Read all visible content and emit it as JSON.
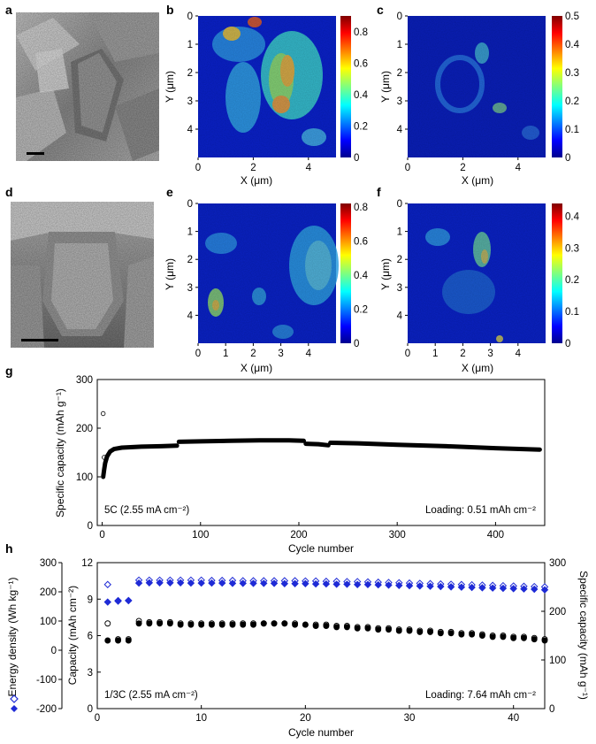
{
  "panels": {
    "a": {
      "letter": "a"
    },
    "b": {
      "letter": "b",
      "xlabel": "X (μm)",
      "ylabel": "Y (μm)",
      "x_ticks": [
        "0",
        "2",
        "4"
      ],
      "y_ticks": [
        "0",
        "1",
        "2",
        "3",
        "4"
      ],
      "colorbar_ticks": [
        "0.8",
        "0.6",
        "0.4",
        "0.2",
        "0"
      ]
    },
    "c": {
      "letter": "c",
      "xlabel": "X (μm)",
      "ylabel": "Y (μm)",
      "x_ticks": [
        "0",
        "2",
        "4"
      ],
      "y_ticks": [
        "0",
        "1",
        "2",
        "3",
        "4"
      ],
      "colorbar_ticks": [
        "0.5",
        "0.4",
        "0.3",
        "0.2",
        "0.1",
        "0"
      ]
    },
    "d": {
      "letter": "d"
    },
    "e": {
      "letter": "e",
      "xlabel": "X (μm)",
      "ylabel": "Y (μm)",
      "x_ticks": [
        "0",
        "1",
        "2",
        "3",
        "4"
      ],
      "y_ticks": [
        "0",
        "1",
        "2",
        "3",
        "4"
      ],
      "colorbar_ticks": [
        "0.8",
        "0.6",
        "0.4",
        "0.2",
        "0"
      ]
    },
    "f": {
      "letter": "f",
      "xlabel": "X (μm)",
      "ylabel": "Y (μm)",
      "x_ticks": [
        "0",
        "1",
        "2",
        "3",
        "4"
      ],
      "y_ticks": [
        "0",
        "1",
        "2",
        "3",
        "4"
      ],
      "colorbar_ticks": [
        "0.4",
        "0.3",
        "0.2",
        "0.1",
        "0"
      ]
    },
    "g": {
      "letter": "g"
    },
    "h": {
      "letter": "h"
    }
  },
  "chart_data": [
    {
      "id": "g",
      "type": "scatter",
      "xlabel": "Cycle number",
      "ylabel": "Specific capacity (mAh g⁻¹)",
      "xlim": [
        -5,
        450
      ],
      "ylim": [
        0,
        300
      ],
      "x_ticks": [
        0,
        100,
        200,
        300,
        400
      ],
      "y_ticks": [
        0,
        100,
        200,
        300
      ],
      "annotation_left": "5C (2.55 mA cm⁻²)",
      "annotation_right": "Loading: 0.51 mAh cm⁻²",
      "series": [
        {
          "marker": "open",
          "points": [
            [
              1,
              230
            ],
            [
              2,
              140
            ]
          ]
        },
        {
          "marker": "filled",
          "segments": [
            [
              [
                1,
                100
              ],
              [
                2,
                115
              ],
              [
                3,
                128
              ],
              [
                5,
                142
              ],
              [
                8,
                152
              ],
              [
                12,
                157
              ],
              [
                20,
                160
              ],
              [
                40,
                162
              ],
              [
                60,
                163
              ],
              [
                76,
                164
              ]
            ],
            [
              [
                78,
                172
              ],
              [
                100,
                173
              ],
              [
                130,
                174
              ],
              [
                160,
                175
              ],
              [
                190,
                175
              ],
              [
                205,
                174
              ]
            ],
            [
              [
                207,
                168
              ],
              [
                220,
                167
              ],
              [
                230,
                165
              ]
            ],
            [
              [
                232,
                170
              ],
              [
                260,
                169
              ],
              [
                300,
                166
              ],
              [
                350,
                163
              ],
              [
                400,
                159
              ],
              [
                445,
                156
              ]
            ]
          ]
        }
      ]
    },
    {
      "id": "h",
      "type": "scatter",
      "xlabel": "Cycle number",
      "ylabel_left": "Capacity (mAh cm⁻²)",
      "ylabel_far_left": "Energy density (Wh kg⁻¹)",
      "ylabel_right": "Specific capacity (mAh g⁻¹)",
      "xlim": [
        0,
        43
      ],
      "ylim_left": [
        0,
        12
      ],
      "ylim_energy": [
        -200,
        300
      ],
      "ylim_right": [
        0,
        300
      ],
      "x_ticks": [
        0,
        10,
        20,
        30,
        40
      ],
      "y_ticks_left": [
        0,
        3,
        6,
        9,
        12
      ],
      "y_ticks_energy": [
        -200,
        -100,
        0,
        100,
        200,
        300
      ],
      "y_ticks_right": [
        0,
        100,
        200,
        300
      ],
      "annotation_left": "1/3C (2.55 mA cm⁻²)",
      "annotation_right": "Loading: 7.64 mAh cm⁻²",
      "colors": {
        "energy": "#1f2bd6",
        "capacity": "#000000"
      },
      "series": [
        {
          "name": "energy-charge",
          "marker": "open-diamond",
          "axis": "energy",
          "x": [
            1,
            2,
            3,
            4,
            5,
            6,
            7,
            8,
            9,
            10,
            11,
            12,
            13,
            14,
            15,
            16,
            17,
            18,
            19,
            20,
            21,
            22,
            23,
            24,
            25,
            26,
            27,
            28,
            29,
            30,
            31,
            32,
            33,
            34,
            35,
            36,
            37,
            38,
            39,
            40,
            41,
            42,
            43
          ],
          "y": [
            225,
            170,
            170,
            240,
            240,
            240,
            240,
            240,
            240,
            240,
            239,
            239,
            239,
            238,
            238,
            238,
            238,
            238,
            238,
            237,
            237,
            236,
            236,
            235,
            235,
            234,
            233,
            232,
            231,
            230,
            229,
            228,
            227,
            226,
            225,
            224,
            223,
            222,
            221,
            220,
            219,
            218,
            217
          ]
        },
        {
          "name": "energy-discharge",
          "marker": "filled-diamond",
          "axis": "energy",
          "x": [
            1,
            2,
            3,
            4,
            5,
            6,
            7,
            8,
            9,
            10,
            11,
            12,
            13,
            14,
            15,
            16,
            17,
            18,
            19,
            20,
            21,
            22,
            23,
            24,
            25,
            26,
            27,
            28,
            29,
            30,
            31,
            32,
            33,
            34,
            35,
            36,
            37,
            38,
            39,
            40,
            41,
            42,
            43
          ],
          "y": [
            165,
            168,
            170,
            230,
            231,
            231,
            231,
            231,
            230,
            230,
            230,
            230,
            229,
            229,
            229,
            229,
            229,
            228,
            228,
            228,
            227,
            227,
            226,
            226,
            225,
            225,
            224,
            223,
            222,
            221,
            220,
            219,
            218,
            217,
            216,
            215,
            214,
            213,
            212,
            211,
            210,
            209,
            207
          ]
        },
        {
          "name": "capacity-charge",
          "marker": "open-circle",
          "axis": "capacity",
          "x": [
            1,
            2,
            3,
            4,
            5,
            6,
            7,
            8,
            9,
            10,
            11,
            12,
            13,
            14,
            15,
            16,
            17,
            18,
            19,
            20,
            21,
            22,
            23,
            24,
            25,
            26,
            27,
            28,
            29,
            30,
            31,
            32,
            33,
            34,
            35,
            36,
            37,
            38,
            39,
            40,
            41,
            42,
            43
          ],
          "y": [
            7.0,
            5.7,
            5.7,
            7.2,
            7.1,
            7.1,
            7.1,
            7.0,
            7.0,
            7.0,
            7.0,
            7.0,
            7.0,
            7.0,
            7.0,
            7.0,
            7.0,
            7.0,
            7.0,
            6.9,
            6.9,
            6.9,
            6.8,
            6.8,
            6.7,
            6.7,
            6.6,
            6.6,
            6.5,
            6.5,
            6.4,
            6.4,
            6.3,
            6.3,
            6.2,
            6.2,
            6.1,
            6.0,
            6.0,
            5.9,
            5.9,
            5.8,
            5.7
          ]
        },
        {
          "name": "capacity-discharge",
          "marker": "filled-circle",
          "axis": "capacity",
          "x": [
            1,
            2,
            3,
            4,
            5,
            6,
            7,
            8,
            9,
            10,
            11,
            12,
            13,
            14,
            15,
            16,
            17,
            18,
            19,
            20,
            21,
            22,
            23,
            24,
            25,
            26,
            27,
            28,
            29,
            30,
            31,
            32,
            33,
            34,
            35,
            36,
            37,
            38,
            39,
            40,
            41,
            42,
            43
          ],
          "y": [
            5.6,
            5.6,
            5.6,
            7.0,
            7.0,
            7.0,
            7.0,
            6.9,
            6.9,
            6.9,
            6.9,
            6.9,
            6.9,
            6.9,
            6.9,
            7.0,
            7.0,
            7.0,
            6.9,
            6.9,
            6.8,
            6.8,
            6.7,
            6.7,
            6.6,
            6.6,
            6.5,
            6.5,
            6.4,
            6.4,
            6.3,
            6.3,
            6.2,
            6.2,
            6.1,
            6.1,
            6.0,
            5.9,
            5.9,
            5.8,
            5.8,
            5.7,
            5.6
          ]
        }
      ]
    }
  ]
}
